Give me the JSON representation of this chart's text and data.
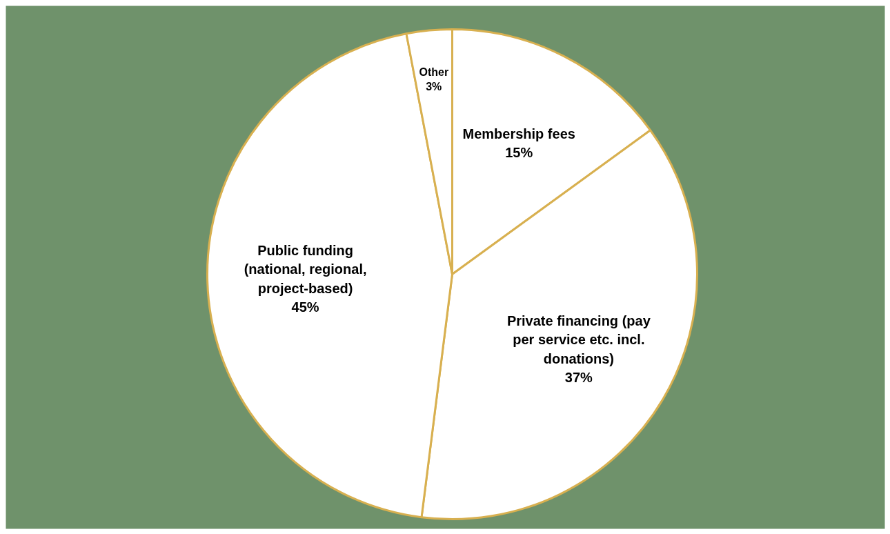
{
  "chart_data": {
    "type": "pie",
    "categories": [
      "Membership fees",
      "Private financing (pay per service etc. incl. donations)",
      "Public funding (national, regional, project-based)",
      "Other"
    ],
    "values": [
      15,
      37,
      45,
      3
    ],
    "value_labels": [
      "15%",
      "37%",
      "45%",
      "3%"
    ],
    "colors": [
      "#ffffff",
      "#ffffff",
      "#ffffff",
      "#ffffff"
    ]
  }
}
